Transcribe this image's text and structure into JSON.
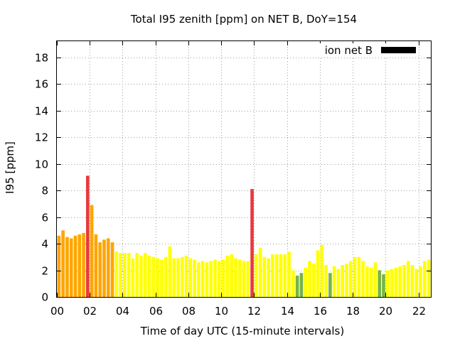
{
  "chart_data": {
    "type": "bar",
    "title": "Total I95 zenith [ppm] on NET B, DoY=154",
    "xlabel": "Time of day UTC (15-minute intervals)",
    "ylabel": "I95 [ppm]",
    "xlim": [
      0,
      22.75
    ],
    "ylim": [
      0,
      19.2
    ],
    "x_ticks": [
      "00",
      "02",
      "04",
      "06",
      "08",
      "10",
      "12",
      "14",
      "16",
      "18",
      "20",
      "22"
    ],
    "y_ticks": [
      "0",
      "2",
      "4",
      "6",
      "8",
      "10",
      "12",
      "14",
      "16",
      "18"
    ],
    "grid": true,
    "legend": {
      "label": "ion net B",
      "placement": "top-right"
    },
    "bar_interval_hours": 0.25,
    "colors": {
      "red": "#e8393b",
      "orange": "#ffa500",
      "yellow": "#ffff00",
      "green": "#76b443",
      "legend_swatch": "#000000"
    },
    "values": [
      4.6,
      5.0,
      4.5,
      4.4,
      4.6,
      4.7,
      4.8,
      9.1,
      6.9,
      4.7,
      4.1,
      4.3,
      4.4,
      4.1,
      3.4,
      3.3,
      3.3,
      3.3,
      2.9,
      3.3,
      3.1,
      3.3,
      3.1,
      3.0,
      2.9,
      2.8,
      3.0,
      3.8,
      2.9,
      2.9,
      3.0,
      3.1,
      2.9,
      2.8,
      2.6,
      2.7,
      2.6,
      2.7,
      2.8,
      2.7,
      2.8,
      3.1,
      3.2,
      2.9,
      2.8,
      2.7,
      2.7,
      8.1,
      3.2,
      3.7,
      3.0,
      2.9,
      3.2,
      3.2,
      3.2,
      3.2,
      3.4,
      2.0,
      1.6,
      1.8,
      2.2,
      2.7,
      2.5,
      3.5,
      3.9,
      2.4,
      1.8,
      2.3,
      2.1,
      2.4,
      2.5,
      2.7,
      3.0,
      3.0,
      2.7,
      2.3,
      2.2,
      2.6,
      2.0,
      1.7,
      2.0,
      2.1,
      2.2,
      2.3,
      2.4,
      2.7,
      2.4,
      2.1,
      2.3,
      2.7,
      2.8
    ],
    "bar_colors": [
      "orange",
      "orange",
      "orange",
      "orange",
      "orange",
      "orange",
      "orange",
      "red",
      "orange",
      "orange",
      "orange",
      "orange",
      "orange",
      "orange",
      "yellow",
      "yellow",
      "yellow",
      "yellow",
      "yellow",
      "yellow",
      "yellow",
      "yellow",
      "yellow",
      "yellow",
      "yellow",
      "yellow",
      "yellow",
      "yellow",
      "yellow",
      "yellow",
      "yellow",
      "yellow",
      "yellow",
      "yellow",
      "yellow",
      "yellow",
      "yellow",
      "yellow",
      "yellow",
      "yellow",
      "yellow",
      "yellow",
      "yellow",
      "yellow",
      "yellow",
      "yellow",
      "yellow",
      "red",
      "yellow",
      "yellow",
      "yellow",
      "yellow",
      "yellow",
      "yellow",
      "yellow",
      "yellow",
      "yellow",
      "yellow",
      "green",
      "green",
      "yellow",
      "yellow",
      "yellow",
      "yellow",
      "yellow",
      "yellow",
      "green",
      "yellow",
      "yellow",
      "yellow",
      "yellow",
      "yellow",
      "yellow",
      "yellow",
      "yellow",
      "yellow",
      "yellow",
      "yellow",
      "green",
      "green",
      "yellow",
      "yellow",
      "yellow",
      "yellow",
      "yellow",
      "yellow",
      "yellow",
      "yellow",
      "yellow",
      "yellow",
      "yellow"
    ]
  }
}
